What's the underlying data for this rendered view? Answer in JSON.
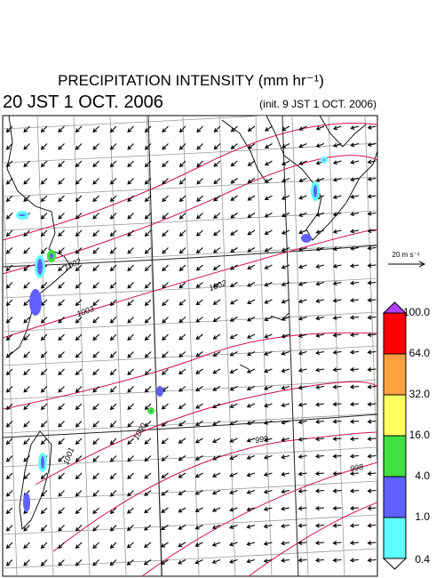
{
  "header": {
    "title": "PRECIPITATION INTENSITY (mm hr⁻¹)",
    "valid_time": "20 JST 1 OCT. 2006",
    "init_time": "(init. 9 JST 1 OCT. 2006)"
  },
  "wind_scale": {
    "label": "20 m s⁻¹"
  },
  "isobar_labels": [
    "1002",
    "1002",
    "1003",
    "1001",
    "1000",
    "999",
    "998"
  ],
  "colorbar": {
    "labels": [
      "100.0",
      "64.0",
      "32.0",
      "16.0",
      "4.0",
      "1.0",
      "0.4"
    ],
    "colors": [
      "#b040ff",
      "#ff0000",
      "#ffa040",
      "#ffff60",
      "#40e040",
      "#6060ff",
      "#60ffff",
      "#ffffff"
    ]
  }
}
